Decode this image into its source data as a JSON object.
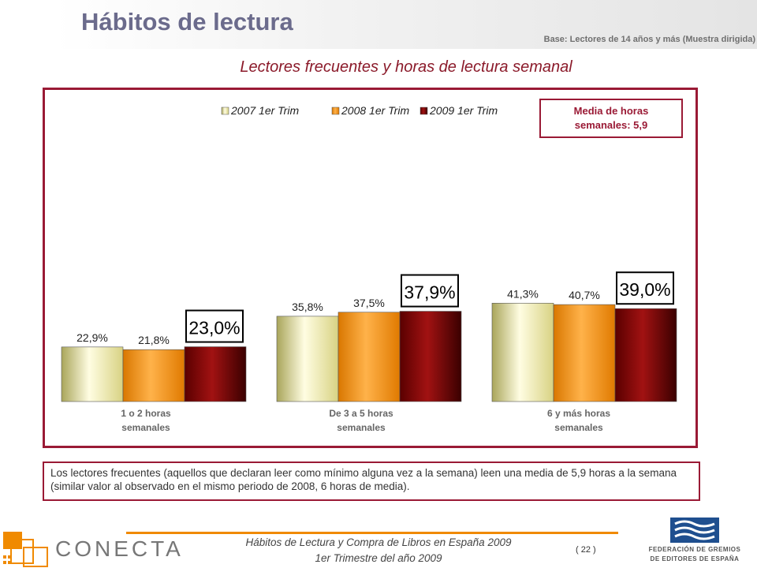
{
  "header": {
    "title": "Hábitos de lectura",
    "base_note": "Base: Lectores de 14 años y más (Muestra dirigida)",
    "subtitle": "Lectores frecuentes y horas de lectura semanal"
  },
  "callout": {
    "line1": "Media de horas",
    "line2": "semanales: 5,9"
  },
  "note": "Los lectores frecuentes (aquellos que declaran leer como mínimo alguna vez a la semana) leen una media de 5,9 horas a la semana (similar valor al observado en el mismo periodo de 2008, 6 horas de media).",
  "footer": {
    "line1": "Hábitos de Lectura y Compra de Libros en España 2009",
    "line2": "1er Trimestre del año 2009",
    "page": "( 22 )",
    "brand": "CONECTA",
    "federation_line1": "FEDERACIÓN DE GREMIOS",
    "federation_line2": "DE EDITORES DE ESPAÑA"
  },
  "colors": {
    "accent": "#9a1a35",
    "orange": "#f08a00",
    "series_2007": "#e8e29a",
    "series_2008": "#f7950f",
    "series_2009": "#7a0a0a"
  },
  "chart_data": {
    "type": "bar",
    "categories": [
      [
        "1 o 2 horas",
        "semanales"
      ],
      [
        "De 3 a 5 horas",
        "semanales"
      ],
      [
        "6 y más horas",
        "semanales"
      ]
    ],
    "series": [
      {
        "name": "2007 1er Trim",
        "values": [
          22.9,
          35.8,
          41.3
        ],
        "labels": [
          "22,9%",
          "35,8%",
          "41,3%"
        ]
      },
      {
        "name": "2008 1er Trim",
        "values": [
          21.8,
          37.5,
          40.7
        ],
        "labels": [
          "21,8%",
          "37,5%",
          "40,7%"
        ]
      },
      {
        "name": "2009 1er Trim",
        "values": [
          23.0,
          37.9,
          39.0
        ],
        "labels": [
          "23,0%",
          "37,9%",
          "39,0%"
        ]
      }
    ],
    "highlighted_series": "2009 1er Trim",
    "ylim": [
      0,
      45
    ],
    "grid": false,
    "legend": "top"
  }
}
